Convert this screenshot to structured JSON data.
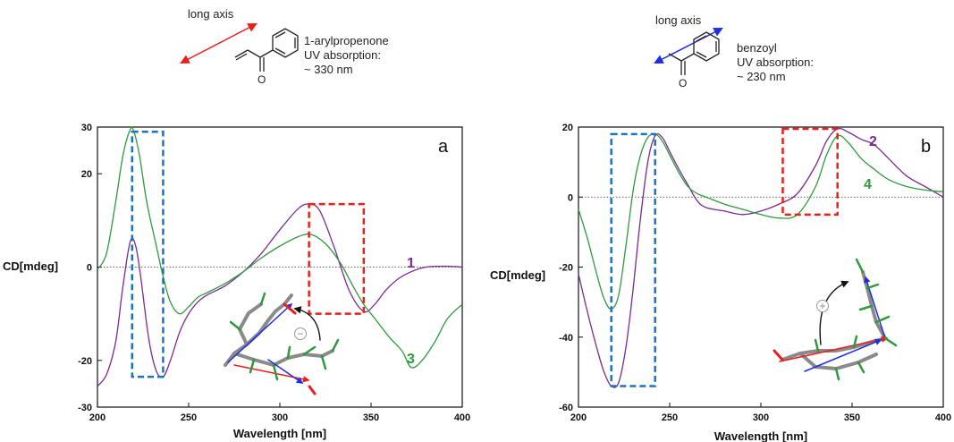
{
  "schemes": {
    "left": {
      "axis_label": "long axis",
      "name": "1-arylpropenone",
      "absorption_label": "UV absorption:",
      "absorption_value": "~ 330 nm",
      "oxygen": "O",
      "arrow_color": "#e8201c"
    },
    "right": {
      "axis_label": "long axis",
      "name": "benzoyl",
      "absorption_label": "UV absorption:",
      "absorption_value": "~ 230 nm",
      "oxygen": "O",
      "arrow_color": "#1c2ee8"
    }
  },
  "colors": {
    "purple": "#7b2a8f",
    "green": "#2f9a3c",
    "blue_box": "#1e73be",
    "red_box": "#e8201c"
  },
  "chart_data": [
    {
      "type": "line",
      "panel_letter": "a",
      "xlabel": "Wavelength [nm]",
      "ylabel": "CD[mdeg]",
      "xlim": [
        200,
        400
      ],
      "ylim": [
        -30,
        30
      ],
      "xticks": [
        200,
        250,
        300,
        350,
        400
      ],
      "yticks": [
        -30,
        -20,
        0,
        20,
        30
      ],
      "zero_line": true,
      "series": [
        {
          "name": "1",
          "color": "#7b2a8f",
          "x": [
            200,
            205,
            210,
            214,
            218,
            221,
            224,
            228,
            232,
            236,
            240,
            245,
            250,
            255,
            260,
            270,
            280,
            290,
            300,
            310,
            316,
            322,
            330,
            338,
            346,
            352,
            358,
            365,
            372,
            380,
            390,
            400
          ],
          "y": [
            -25.5,
            -23,
            -16,
            -4,
            5.5,
            4.5,
            -3,
            -15,
            -22,
            -23.5,
            -20,
            -14,
            -10,
            -7.5,
            -6,
            -4,
            -1,
            3,
            8,
            12.5,
            13.5,
            12,
            4,
            -5,
            -9.5,
            -8,
            -5,
            -2.5,
            -1,
            0,
            0.2,
            0
          ]
        },
        {
          "name": "3",
          "color": "#2f9a3c",
          "x": [
            200,
            205,
            210,
            214,
            218,
            220,
            223,
            227,
            232,
            236,
            240,
            245,
            250,
            255,
            260,
            270,
            280,
            290,
            300,
            310,
            317,
            325,
            333,
            340,
            346,
            352,
            360,
            367,
            372,
            378,
            385,
            392,
            400
          ],
          "y": [
            -0.5,
            3,
            14,
            24,
            29.5,
            29,
            24,
            14,
            5,
            -2,
            -7.5,
            -10,
            -8.5,
            -6.5,
            -5.5,
            -3.5,
            -1,
            2,
            4.5,
            6.5,
            7,
            5,
            1,
            -4,
            -8,
            -11,
            -15,
            -18,
            -21.5,
            -20,
            -16,
            -11,
            -8
          ]
        }
      ],
      "boxes": [
        {
          "color": "#1e73be",
          "x": [
            219,
            236
          ],
          "y": [
            -23.5,
            29
          ]
        },
        {
          "color": "#e8201c",
          "x": [
            316,
            346
          ],
          "y": [
            -10,
            13.5
          ]
        }
      ],
      "sign": "−"
    },
    {
      "type": "line",
      "panel_letter": "b",
      "xlabel": "Wavelength [nm]",
      "ylabel": "CD[mdeg]",
      "xlim": [
        200,
        400
      ],
      "ylim": [
        -60,
        20
      ],
      "xticks": [
        200,
        250,
        300,
        350,
        400
      ],
      "yticks": [
        -60,
        -40,
        -20,
        0,
        20
      ],
      "zero_line": true,
      "series": [
        {
          "name": "2",
          "color": "#7b2a8f",
          "x": [
            200,
            205,
            210,
            214,
            218,
            222,
            226,
            230,
            234,
            238,
            242,
            246,
            250,
            255,
            260,
            265,
            270,
            280,
            290,
            300,
            310,
            320,
            330,
            336,
            342,
            348,
            355,
            362,
            370,
            380,
            390,
            400
          ],
          "y": [
            -22,
            -33,
            -43,
            -50,
            -54,
            -53,
            -43,
            -26,
            -6,
            10,
            17.5,
            17,
            13,
            8,
            3.5,
            -1,
            -3,
            -4,
            -5,
            -4,
            -2,
            1,
            9,
            16,
            19.5,
            18.5,
            16.5,
            15,
            11,
            6,
            3,
            0
          ]
        },
        {
          "name": "4",
          "color": "#2f9a3c",
          "x": [
            200,
            205,
            210,
            214,
            218,
            222,
            226,
            230,
            234,
            238,
            242,
            246,
            250,
            255,
            260,
            265,
            270,
            280,
            290,
            300,
            310,
            320,
            330,
            336,
            342,
            348,
            355,
            362,
            370,
            380,
            390,
            400
          ],
          "y": [
            -3.5,
            -12,
            -22,
            -29,
            -32,
            -28,
            -14,
            2,
            12,
            17,
            18,
            16,
            12,
            7,
            3,
            1,
            0,
            -2,
            -3.5,
            -5,
            -6,
            -5,
            3,
            12,
            17.5,
            15.5,
            11,
            8,
            5,
            3,
            2,
            1.5
          ]
        }
      ],
      "boxes": [
        {
          "color": "#1e73be",
          "x": [
            218,
            242
          ],
          "y": [
            -54,
            18
          ]
        },
        {
          "color": "#e8201c",
          "x": [
            312,
            342
          ],
          "y": [
            -5,
            19.5
          ]
        }
      ],
      "sign": "+"
    }
  ]
}
